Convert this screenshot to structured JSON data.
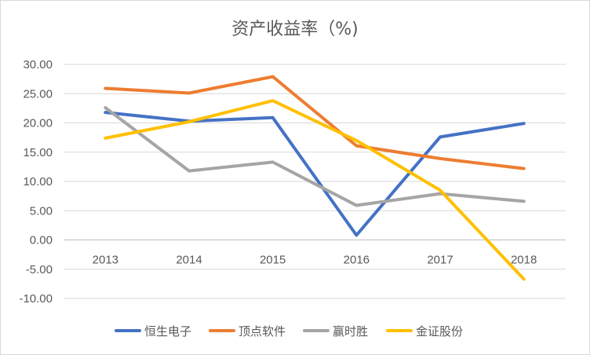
{
  "chart_data": {
    "type": "line",
    "title": "资产收益率（%)",
    "categories": [
      "2013",
      "2014",
      "2015",
      "2016",
      "2017",
      "2018"
    ],
    "ylim": [
      -10,
      30
    ],
    "y_ticks": [
      "30.00",
      "25.00",
      "20.00",
      "15.00",
      "10.00",
      "5.00",
      "0.00",
      "-5.00",
      "-10.00"
    ],
    "grid": true,
    "legend_position": "bottom",
    "series": [
      {
        "name": "恒生电子",
        "color": "#4472C4",
        "values": [
          21.8,
          20.3,
          20.9,
          0.8,
          17.6,
          19.9
        ]
      },
      {
        "name": "顶点软件",
        "color": "#ED7D31",
        "values": [
          25.9,
          25.1,
          27.9,
          16.1,
          13.9,
          12.2
        ]
      },
      {
        "name": "赢时胜",
        "color": "#A5A5A5",
        "values": [
          22.6,
          11.8,
          13.3,
          5.9,
          7.9,
          6.6
        ]
      },
      {
        "name": "金证股份",
        "color": "#FFC000",
        "values": [
          17.4,
          20.2,
          23.8,
          17.0,
          8.5,
          -6.7
        ]
      }
    ]
  }
}
